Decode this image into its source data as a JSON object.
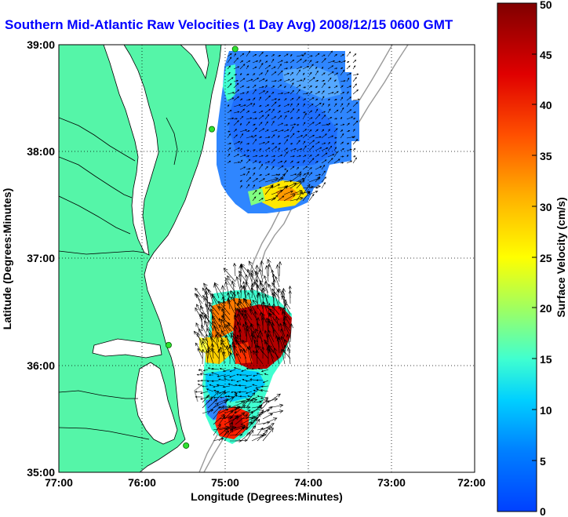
{
  "title": "Southern Mid-Atlantic Raw Velocities (1 Day Avg) 2008/12/15 0600 GMT",
  "map": {
    "x_label": "Longitude (Degrees:Minutes)",
    "y_label": "Latitude (Degrees:Minutes)",
    "x_ticks": [
      "77:00",
      "76:00",
      "75:00",
      "74:00",
      "73:00",
      "72:00"
    ],
    "y_ticks": [
      "39:00",
      "38:00",
      "37:00",
      "36:00",
      "35:00"
    ],
    "lon_range": [
      -77,
      -72
    ],
    "lat_range": [
      35,
      39
    ],
    "land_color": "#55f5a8",
    "stations": [
      {
        "lon": -74.88,
        "lat": 38.96
      },
      {
        "lon": -75.16,
        "lat": 38.21
      },
      {
        "lon": -75.68,
        "lat": 36.19
      },
      {
        "lon": -75.47,
        "lat": 35.25
      }
    ]
  },
  "colorbar": {
    "label": "Surface Velocity (cm/s)",
    "ticks": [
      "0",
      "5",
      "10",
      "15",
      "20",
      "25",
      "30",
      "35",
      "40",
      "45",
      "50"
    ],
    "min": 0,
    "max": 50
  }
}
